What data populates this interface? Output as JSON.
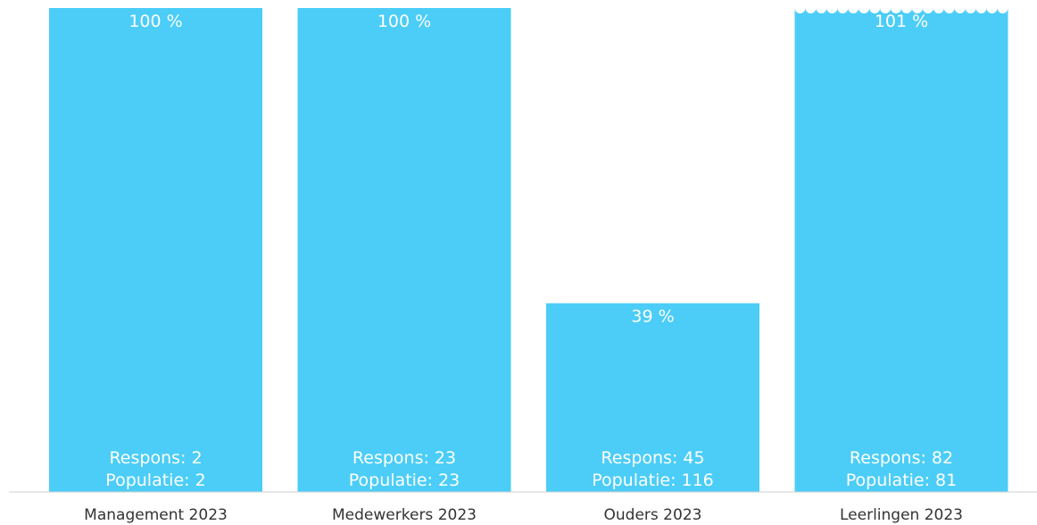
{
  "chart_data": {
    "type": "bar",
    "title": "",
    "xlabel": "",
    "ylabel": "",
    "ylim": [
      0,
      100
    ],
    "grid": false,
    "categories": [
      "Management 2023",
      "Medewerkers 2023",
      "Ouders 2023",
      "Leerlingen 2023"
    ],
    "values": [
      100,
      100,
      39,
      101
    ],
    "value_labels": [
      "100 %",
      "100 %",
      "39 %",
      "101 %"
    ],
    "respons_labels": [
      "Respons: 2",
      "Respons: 23",
      "Respons: 45",
      "Respons: 82"
    ],
    "populatie_labels": [
      "Populatie: 2",
      "Populatie: 23",
      "Populatie: 116",
      "Populatie: 81"
    ],
    "respons": [
      2,
      23,
      45,
      82
    ],
    "populatie": [
      2,
      23,
      116,
      81
    ],
    "bar_color": "#4bcdf7",
    "axis_color": "#cfcfcf"
  }
}
